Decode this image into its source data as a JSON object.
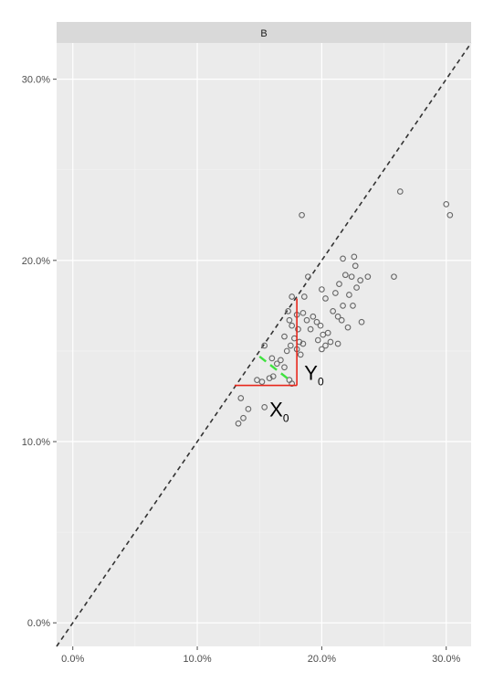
{
  "chart_data": {
    "type": "scatter",
    "panel_label": "B",
    "xlim": [
      -0.013,
      0.32
    ],
    "ylim": [
      -0.013,
      0.32
    ],
    "x_ticks": [
      0.0,
      0.1,
      0.2,
      0.3
    ],
    "x_tick_labels": [
      "0.0%",
      "10.0%",
      "20.0%",
      "30.0%"
    ],
    "y_ticks": [
      0.0,
      0.1,
      0.2,
      0.3
    ],
    "y_tick_labels": [
      "0.0%",
      "10.0%",
      "20.0%",
      "30.0%"
    ],
    "grid": true,
    "reference_line": {
      "style": "dashed",
      "slope": 1,
      "intercept": 0,
      "color": "#333333"
    },
    "points": [
      {
        "x": 0.133,
        "y": 0.11
      },
      {
        "x": 0.137,
        "y": 0.113
      },
      {
        "x": 0.141,
        "y": 0.118
      },
      {
        "x": 0.135,
        "y": 0.124
      },
      {
        "x": 0.154,
        "y": 0.119
      },
      {
        "x": 0.148,
        "y": 0.134
      },
      {
        "x": 0.152,
        "y": 0.133
      },
      {
        "x": 0.158,
        "y": 0.135
      },
      {
        "x": 0.161,
        "y": 0.136
      },
      {
        "x": 0.164,
        "y": 0.143
      },
      {
        "x": 0.167,
        "y": 0.145
      },
      {
        "x": 0.17,
        "y": 0.141
      },
      {
        "x": 0.174,
        "y": 0.134
      },
      {
        "x": 0.176,
        "y": 0.132
      },
      {
        "x": 0.172,
        "y": 0.15
      },
      {
        "x": 0.175,
        "y": 0.153
      },
      {
        "x": 0.178,
        "y": 0.157
      },
      {
        "x": 0.18,
        "y": 0.151
      },
      {
        "x": 0.182,
        "y": 0.155
      },
      {
        "x": 0.185,
        "y": 0.154
      },
      {
        "x": 0.181,
        "y": 0.162
      },
      {
        "x": 0.176,
        "y": 0.164
      },
      {
        "x": 0.174,
        "y": 0.167
      },
      {
        "x": 0.173,
        "y": 0.172
      },
      {
        "x": 0.18,
        "y": 0.17
      },
      {
        "x": 0.185,
        "y": 0.171
      },
      {
        "x": 0.188,
        "y": 0.167
      },
      {
        "x": 0.191,
        "y": 0.162
      },
      {
        "x": 0.193,
        "y": 0.169
      },
      {
        "x": 0.196,
        "y": 0.166
      },
      {
        "x": 0.199,
        "y": 0.164
      },
      {
        "x": 0.201,
        "y": 0.159
      },
      {
        "x": 0.197,
        "y": 0.156
      },
      {
        "x": 0.203,
        "y": 0.153
      },
      {
        "x": 0.2,
        "y": 0.151
      },
      {
        "x": 0.207,
        "y": 0.155
      },
      {
        "x": 0.213,
        "y": 0.154
      },
      {
        "x": 0.186,
        "y": 0.18
      },
      {
        "x": 0.189,
        "y": 0.191
      },
      {
        "x": 0.2,
        "y": 0.184
      },
      {
        "x": 0.203,
        "y": 0.179
      },
      {
        "x": 0.209,
        "y": 0.172
      },
      {
        "x": 0.213,
        "y": 0.169
      },
      {
        "x": 0.217,
        "y": 0.175
      },
      {
        "x": 0.211,
        "y": 0.182
      },
      {
        "x": 0.214,
        "y": 0.187
      },
      {
        "x": 0.219,
        "y": 0.192
      },
      {
        "x": 0.224,
        "y": 0.191
      },
      {
        "x": 0.227,
        "y": 0.197
      },
      {
        "x": 0.228,
        "y": 0.185
      },
      {
        "x": 0.222,
        "y": 0.181
      },
      {
        "x": 0.217,
        "y": 0.201
      },
      {
        "x": 0.226,
        "y": 0.202
      },
      {
        "x": 0.237,
        "y": 0.191
      },
      {
        "x": 0.231,
        "y": 0.189
      },
      {
        "x": 0.225,
        "y": 0.175
      },
      {
        "x": 0.221,
        "y": 0.163
      },
      {
        "x": 0.216,
        "y": 0.167
      },
      {
        "x": 0.232,
        "y": 0.166
      },
      {
        "x": 0.258,
        "y": 0.191
      },
      {
        "x": 0.263,
        "y": 0.238
      },
      {
        "x": 0.3,
        "y": 0.231
      },
      {
        "x": 0.303,
        "y": 0.225
      },
      {
        "x": 0.184,
        "y": 0.225
      },
      {
        "x": 0.176,
        "y": 0.18
      },
      {
        "x": 0.17,
        "y": 0.158
      },
      {
        "x": 0.16,
        "y": 0.146
      },
      {
        "x": 0.154,
        "y": 0.153
      },
      {
        "x": 0.183,
        "y": 0.148
      },
      {
        "x": 0.205,
        "y": 0.16
      }
    ],
    "annotations": [
      {
        "type": "segment",
        "color": "#e8261b",
        "x1": 0.13,
        "y1": 0.131,
        "x2": 0.18,
        "y2": 0.131
      },
      {
        "type": "segment",
        "color": "#e8261b",
        "x1": 0.18,
        "y1": 0.131,
        "x2": 0.18,
        "y2": 0.179
      },
      {
        "type": "segment",
        "color": "#3fe23f",
        "style": "dashed",
        "x1": 0.15,
        "y1": 0.147,
        "x2": 0.176,
        "y2": 0.133
      },
      {
        "type": "label",
        "text": "X",
        "subscript": "0",
        "x": 0.158,
        "y": 0.114
      },
      {
        "type": "label",
        "text": "Y",
        "subscript": "0",
        "x": 0.186,
        "y": 0.134
      }
    ]
  }
}
